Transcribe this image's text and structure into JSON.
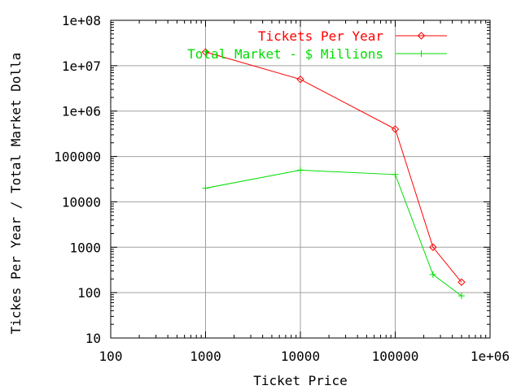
{
  "chart_data": {
    "type": "line",
    "title": "",
    "xlabel": "Ticket Price",
    "ylabel": "Tickes Per Year / Total Market Dolla",
    "x_scale": "log",
    "y_scale": "log",
    "xlim": [
      100,
      1000000
    ],
    "ylim": [
      10,
      100000000
    ],
    "x_ticks": [
      100,
      1000,
      10000,
      100000,
      1000000
    ],
    "x_tick_labels": [
      "100",
      "1000",
      "10000",
      "100000",
      "1e+06"
    ],
    "y_ticks": [
      10,
      100,
      1000,
      10000,
      100000,
      1000000,
      10000000,
      100000000
    ],
    "y_tick_labels": [
      "10",
      "100",
      "1000",
      "10000",
      "100000",
      "1e+06",
      "1e+07",
      "1e+08"
    ],
    "grid": true,
    "legend_position": "top-right",
    "series": [
      {
        "name": "Tickets Per Year",
        "color": "#ff0000",
        "marker": "diamond",
        "x": [
          1000,
          10000,
          100000,
          250000,
          500000
        ],
        "y": [
          20000000,
          5000000,
          400000,
          1000,
          170
        ]
      },
      {
        "name": "Total Market - $ Millions",
        "color": "#00dd00",
        "marker": "plus",
        "x": [
          1000,
          10000,
          100000,
          250000,
          500000
        ],
        "y": [
          20000,
          50000,
          40000,
          250,
          85
        ]
      }
    ]
  }
}
